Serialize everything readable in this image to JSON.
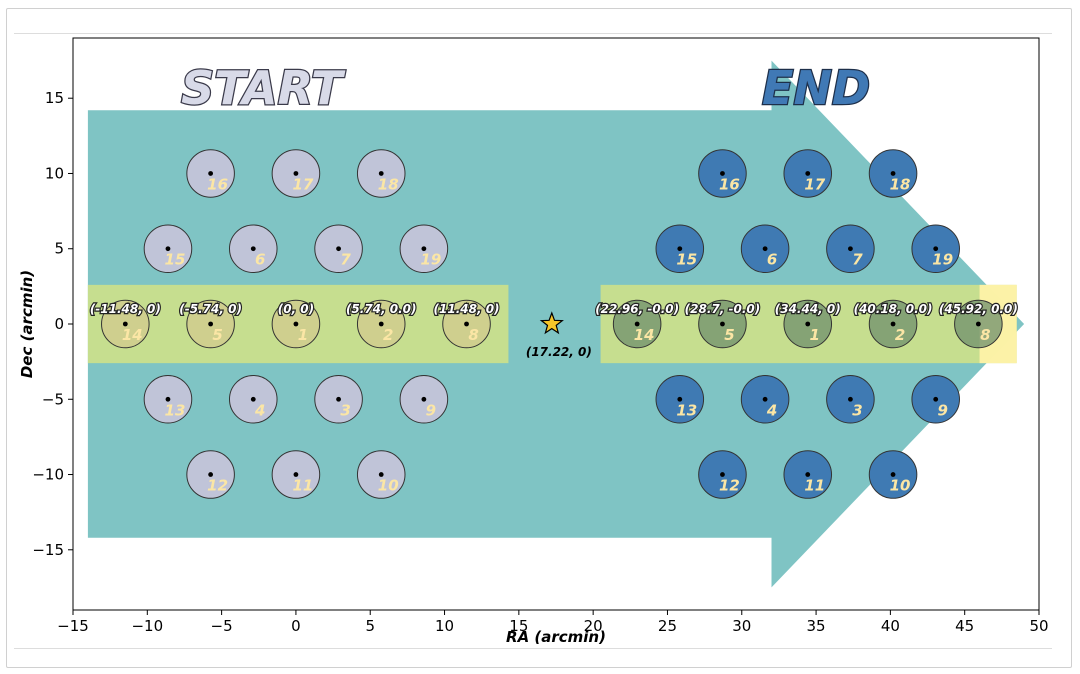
{
  "chart_data": {
    "type": "scatter",
    "title": "",
    "xlabel": "RA (arcmin)",
    "ylabel": "Dec (arcmin)",
    "xlim": [
      -15,
      50
    ],
    "ylim": [
      -19,
      19
    ],
    "xticks": [
      -15,
      -10,
      -5,
      0,
      5,
      10,
      15,
      20,
      25,
      30,
      35,
      40,
      45,
      50
    ],
    "yticks": [
      -15,
      -10,
      -5,
      0,
      5,
      10,
      15
    ],
    "xtick_labels": [
      "−15",
      "−10",
      "−5",
      "0",
      "5",
      "10",
      "15",
      "20",
      "25",
      "30",
      "35",
      "40",
      "45",
      "50"
    ],
    "ytick_labels": [
      "−15",
      "−10",
      "−5",
      "0",
      "5",
      "10",
      "15"
    ],
    "grid": false,
    "colors": {
      "arrow": "#7fc4c4",
      "band": "#cce08a",
      "band_end": "#fff3a8",
      "start_circle": "#c0c4d8",
      "start_circle_row": "#d2c98d",
      "end_circle": "#3f7ab3",
      "end_circle_row": "#6f8f6c",
      "number": "#fbe6a5",
      "star": "#f6c629",
      "start_text": "#d8dae8",
      "end_text": "#4079b5"
    },
    "arrow": {
      "body_x": [
        -14,
        32
      ],
      "body_y": [
        -14.2,
        14.2
      ],
      "head_x": [
        32,
        49
      ],
      "head_y": [
        -17.5,
        17.5
      ]
    },
    "bands": [
      {
        "x": [
          -14,
          14.3
        ],
        "y": [
          -2.6,
          2.6
        ],
        "color": "band"
      },
      {
        "x": [
          20.5,
          48.5
        ],
        "y": [
          -2.6,
          2.6
        ],
        "color": "band"
      },
      {
        "x": [
          46.0,
          48.5
        ],
        "y": [
          -2.6,
          2.6
        ],
        "color": "band_end"
      }
    ],
    "circle_radius": 1.6,
    "start_label": "START",
    "end_label": "END",
    "start_label_pos": [
      -2.3,
      14.6
    ],
    "end_label_pos": [
      35.0,
      14.6
    ],
    "start_points": [
      {
        "id": "1",
        "x": 0,
        "y": 0
      },
      {
        "id": "2",
        "x": 5.74,
        "y": 0
      },
      {
        "id": "3",
        "x": 2.87,
        "y": -5
      },
      {
        "id": "4",
        "x": -2.87,
        "y": -5
      },
      {
        "id": "5",
        "x": -5.74,
        "y": 0
      },
      {
        "id": "6",
        "x": -2.87,
        "y": 5
      },
      {
        "id": "7",
        "x": 2.87,
        "y": 5
      },
      {
        "id": "8",
        "x": 11.48,
        "y": 0
      },
      {
        "id": "9",
        "x": 8.61,
        "y": -5
      },
      {
        "id": "10",
        "x": 5.74,
        "y": -10
      },
      {
        "id": "11",
        "x": 0,
        "y": -10
      },
      {
        "id": "12",
        "x": -5.74,
        "y": -10
      },
      {
        "id": "13",
        "x": -8.61,
        "y": -5
      },
      {
        "id": "14",
        "x": -11.48,
        "y": 0
      },
      {
        "id": "15",
        "x": -8.61,
        "y": 5
      },
      {
        "id": "16",
        "x": -5.74,
        "y": 10
      },
      {
        "id": "17",
        "x": 0,
        "y": 10
      },
      {
        "id": "18",
        "x": 5.74,
        "y": 10
      },
      {
        "id": "19",
        "x": 8.61,
        "y": 5
      }
    ],
    "end_points": [
      {
        "id": "1",
        "x": 34.44,
        "y": 0
      },
      {
        "id": "2",
        "x": 40.18,
        "y": 0
      },
      {
        "id": "3",
        "x": 37.31,
        "y": -5
      },
      {
        "id": "4",
        "x": 31.57,
        "y": -5
      },
      {
        "id": "5",
        "x": 28.7,
        "y": 0
      },
      {
        "id": "6",
        "x": 31.57,
        "y": 5
      },
      {
        "id": "7",
        "x": 37.31,
        "y": 5
      },
      {
        "id": "8",
        "x": 45.92,
        "y": 0
      },
      {
        "id": "9",
        "x": 43.05,
        "y": -5
      },
      {
        "id": "10",
        "x": 40.18,
        "y": -10
      },
      {
        "id": "11",
        "x": 34.44,
        "y": -10
      },
      {
        "id": "12",
        "x": 28.7,
        "y": -10
      },
      {
        "id": "13",
        "x": 25.83,
        "y": -5
      },
      {
        "id": "14",
        "x": 22.96,
        "y": 0
      },
      {
        "id": "15",
        "x": 25.83,
        "y": 5
      },
      {
        "id": "16",
        "x": 28.7,
        "y": 10
      },
      {
        "id": "17",
        "x": 34.44,
        "y": 10
      },
      {
        "id": "18",
        "x": 40.18,
        "y": 10
      },
      {
        "id": "19",
        "x": 43.05,
        "y": 5
      }
    ],
    "start_coord_labels": [
      {
        "x": -11.48,
        "y": 0,
        "text": "(-11.48, 0)"
      },
      {
        "x": -5.74,
        "y": 0,
        "text": "(-5.74, 0)"
      },
      {
        "x": 0,
        "y": 0,
        "text": "(0, 0)"
      },
      {
        "x": 5.74,
        "y": 0,
        "text": "(5.74, 0.0)"
      },
      {
        "x": 11.48,
        "y": 0,
        "text": "(11.48, 0)"
      }
    ],
    "end_coord_labels": [
      {
        "x": 22.96,
        "y": 0,
        "text": "(22.96, -0.0)"
      },
      {
        "x": 28.7,
        "y": 0,
        "text": "(28.7, -0.0)"
      },
      {
        "x": 34.44,
        "y": 0,
        "text": "(34.44, 0)"
      },
      {
        "x": 40.18,
        "y": 0,
        "text": "(40.18, 0.0)"
      },
      {
        "x": 45.92,
        "y": 0,
        "text": "(45.92, 0.0)"
      }
    ],
    "star": {
      "x": 17.22,
      "y": 0,
      "text": "(17.22, 0)"
    }
  }
}
